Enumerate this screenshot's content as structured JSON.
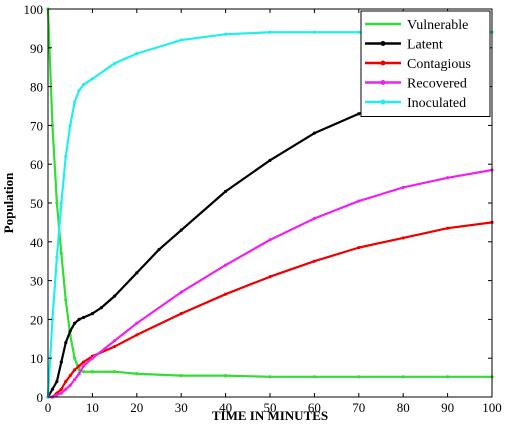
{
  "chart_data": {
    "type": "line",
    "title": "",
    "xlabel": "TIME IN MINUTES",
    "ylabel": "Population",
    "xlim": [
      0,
      100
    ],
    "ylim": [
      0,
      100
    ],
    "x_ticks": [
      0,
      10,
      20,
      30,
      40,
      50,
      60,
      70,
      80,
      90,
      100
    ],
    "y_ticks": [
      0,
      10,
      20,
      30,
      40,
      50,
      60,
      70,
      80,
      90,
      100
    ],
    "grid": false,
    "legend_position": "top-right",
    "series": [
      {
        "name": "Vulnerable",
        "color": "#33dd33",
        "x": [
          0,
          1,
          2,
          3,
          4,
          5,
          6,
          7,
          8,
          10,
          15,
          20,
          30,
          40,
          50,
          60,
          70,
          80,
          90,
          100
        ],
        "y": [
          100,
          70,
          50,
          37,
          25,
          16,
          10,
          7,
          6.5,
          6.5,
          6.5,
          6,
          5.5,
          5.5,
          5.2,
          5.2,
          5.2,
          5.2,
          5.2,
          5.2
        ]
      },
      {
        "name": "Latent",
        "color": "#000000",
        "x": [
          0,
          1,
          2,
          3,
          4,
          5,
          6,
          7,
          8,
          10,
          12,
          15,
          20,
          25,
          30,
          40,
          50,
          60,
          70,
          75
        ],
        "y": [
          0,
          2,
          4,
          9,
          14,
          17,
          19,
          20,
          20.5,
          21.5,
          23,
          26,
          32,
          38,
          43,
          53,
          61,
          68,
          73,
          75
        ]
      },
      {
        "name": "Contagious",
        "color": "#ee0000",
        "x": [
          0,
          1,
          2,
          3,
          4,
          5,
          6,
          7,
          8,
          10,
          15,
          20,
          30,
          40,
          50,
          60,
          70,
          80,
          90,
          100
        ],
        "y": [
          0,
          0,
          1,
          2,
          4,
          5.5,
          7,
          8,
          9,
          10.5,
          13,
          16,
          21.5,
          26.5,
          31,
          35,
          38.5,
          41,
          43.5,
          45
        ]
      },
      {
        "name": "Recovered",
        "color": "#ee22ee",
        "x": [
          0,
          1,
          2,
          3,
          4,
          5,
          6,
          7,
          8,
          10,
          15,
          20,
          30,
          40,
          50,
          60,
          70,
          80,
          90,
          100
        ],
        "y": [
          0,
          0,
          0.5,
          1,
          2,
          3,
          4.5,
          6,
          8,
          10,
          14.5,
          19,
          27,
          34,
          40.5,
          46,
          50.5,
          54,
          56.5,
          58.5
        ]
      },
      {
        "name": "Inoculated",
        "color": "#22eeee",
        "x": [
          0,
          1,
          2,
          3,
          4,
          5,
          6,
          7,
          8,
          10,
          15,
          20,
          30,
          40,
          50,
          60,
          70,
          80,
          90,
          100
        ],
        "y": [
          0,
          20,
          36,
          50,
          62,
          70,
          76,
          79,
          80.5,
          82,
          86,
          88.5,
          92,
          93.5,
          94,
          94,
          94,
          94,
          94,
          94
        ]
      }
    ]
  }
}
